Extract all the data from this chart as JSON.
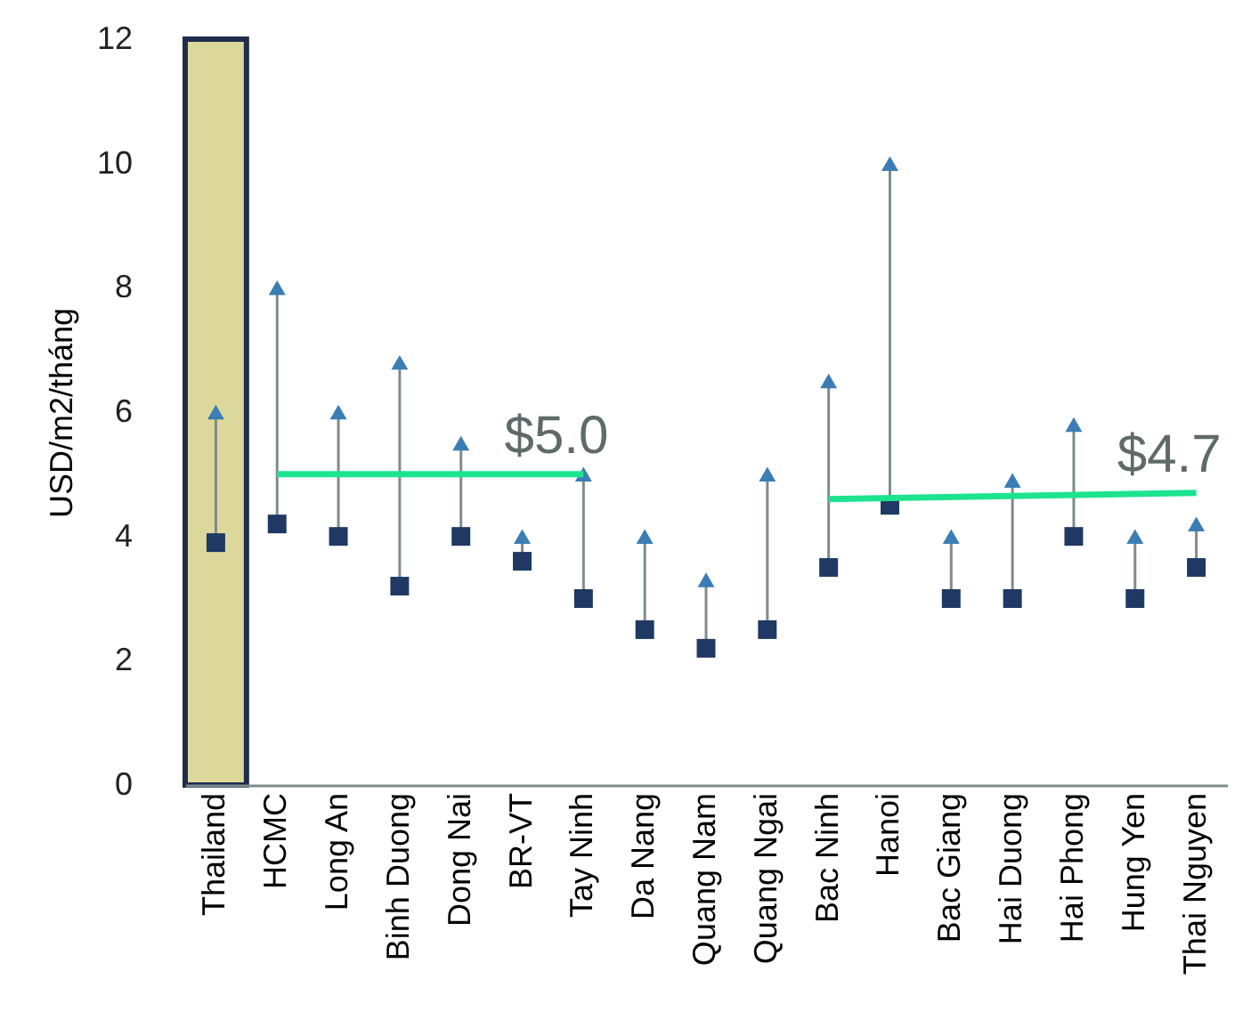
{
  "chart_data": {
    "type": "scatter",
    "ylabel": "USD/m2/tháng",
    "categories": [
      "Thailand",
      "HCMC",
      "Long An",
      "Binh Duong",
      "Dong Nai",
      "BR-VT",
      "Tay Ninh",
      "Da Nang",
      "Quang Nam",
      "Quang Ngai",
      "Bac Ninh",
      "Hanoi",
      "Bac Giang",
      "Hai Duong",
      "Hai Phong",
      "Hung Yen",
      "Thai Nguyen"
    ],
    "series": [
      {
        "marker": "triangle",
        "color": "#3b7db5",
        "values": [
          6.0,
          8.0,
          6.0,
          6.8,
          5.5,
          4.0,
          5.0,
          4.0,
          3.3,
          5.0,
          6.5,
          10.0,
          4.0,
          4.9,
          5.8,
          4.0,
          4.2
        ]
      },
      {
        "marker": "square",
        "color": "#1f3864",
        "values": [
          3.9,
          4.2,
          4.0,
          3.2,
          4.0,
          3.6,
          3.0,
          2.5,
          2.2,
          2.5,
          3.5,
          4.5,
          3.0,
          3.0,
          4.0,
          3.0,
          3.5
        ]
      },
      {
        "type": "line",
        "color": "#1de38f",
        "x": [
          "HCMC",
          "Tay Ninh"
        ],
        "values": [
          5.0,
          5.0
        ]
      },
      {
        "type": "line",
        "color": "#1de38f",
        "x": [
          "Bac Ninh",
          "Thai Nguyen"
        ],
        "values": [
          4.6,
          4.7
        ]
      }
    ],
    "bands": [
      {
        "axis": "x",
        "from": "Thailand",
        "to": "Thailand",
        "color": "#dcd89c"
      }
    ],
    "annotations": [
      {
        "text": "$5.0",
        "x": "Tay Ninh",
        "y": 5.0
      },
      {
        "text": "$4.7",
        "x": "Thai Nguyen",
        "y": 4.7
      }
    ],
    "ylim": [
      0,
      12
    ],
    "yticks": [
      0,
      2,
      4,
      6,
      8,
      10,
      12
    ],
    "grid": false
  }
}
